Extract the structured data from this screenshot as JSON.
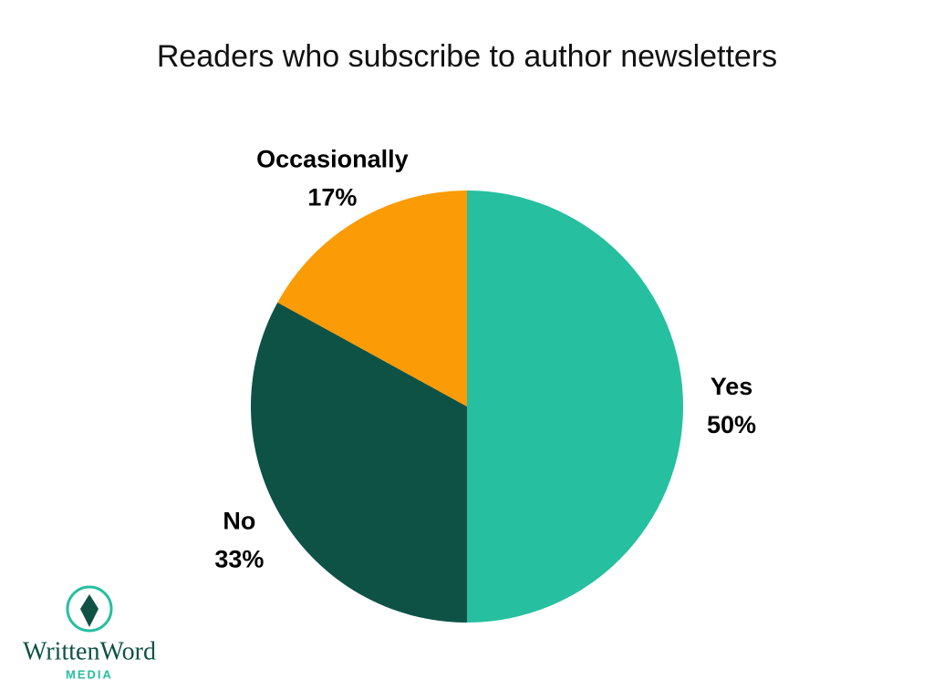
{
  "chart_data": {
    "type": "pie",
    "title": "Readers who subscribe to author newsletters",
    "categories": [
      "Yes",
      "No",
      "Occasionally"
    ],
    "values": [
      50,
      33,
      17
    ],
    "value_labels": [
      "50%",
      "33%",
      "17%"
    ],
    "colors": [
      "#26bf9f",
      "#0e5246",
      "#fb9b05"
    ]
  },
  "logo": {
    "name": "WrittenWord",
    "tagline": "MEDIA"
  }
}
